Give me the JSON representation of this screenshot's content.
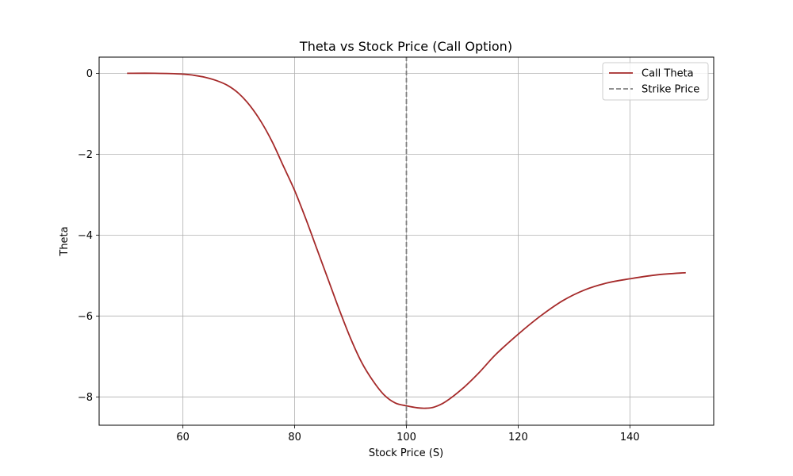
{
  "chart_data": {
    "type": "line",
    "title": "Theta vs Stock Price (Call Option)",
    "xlabel": "Stock Price (S)",
    "ylabel": "Theta",
    "xlim": [
      45,
      155
    ],
    "ylim": [
      -8.7,
      0.4
    ],
    "x_ticks": [
      60,
      80,
      100,
      120,
      140
    ],
    "y_ticks": [
      0,
      -2,
      -4,
      -6,
      -8
    ],
    "x_tick_labels": [
      "60",
      "80",
      "100",
      "120",
      "140"
    ],
    "y_tick_labels": [
      "0",
      "−2",
      "−4",
      "−6",
      "−8"
    ],
    "grid": true,
    "legend_position": "top-right",
    "series": [
      {
        "name": "Call Theta",
        "color": "#a52a2a",
        "style": "solid",
        "x": [
          50,
          55,
          60,
          62,
          64,
          66,
          68,
          70,
          72,
          74,
          76,
          78,
          80,
          82,
          84,
          86,
          88,
          90,
          92,
          94,
          96,
          98,
          100,
          102,
          103.5,
          105,
          107,
          110,
          113,
          116,
          120,
          124,
          128,
          132,
          136,
          140,
          145,
          150
        ],
        "y": [
          0.0,
          0.0,
          -0.02,
          -0.05,
          -0.1,
          -0.18,
          -0.3,
          -0.5,
          -0.8,
          -1.2,
          -1.7,
          -2.3,
          -2.9,
          -3.6,
          -4.35,
          -5.1,
          -5.85,
          -6.55,
          -7.15,
          -7.6,
          -7.95,
          -8.15,
          -8.22,
          -8.27,
          -8.28,
          -8.25,
          -8.12,
          -7.8,
          -7.4,
          -6.95,
          -6.45,
          -6.0,
          -5.62,
          -5.35,
          -5.18,
          -5.08,
          -4.98,
          -4.93
        ]
      },
      {
        "name": "Strike Price",
        "color": "#808080",
        "style": "dashed",
        "x": [
          100,
          100
        ],
        "y": [
          -8.7,
          0.4
        ]
      }
    ]
  }
}
